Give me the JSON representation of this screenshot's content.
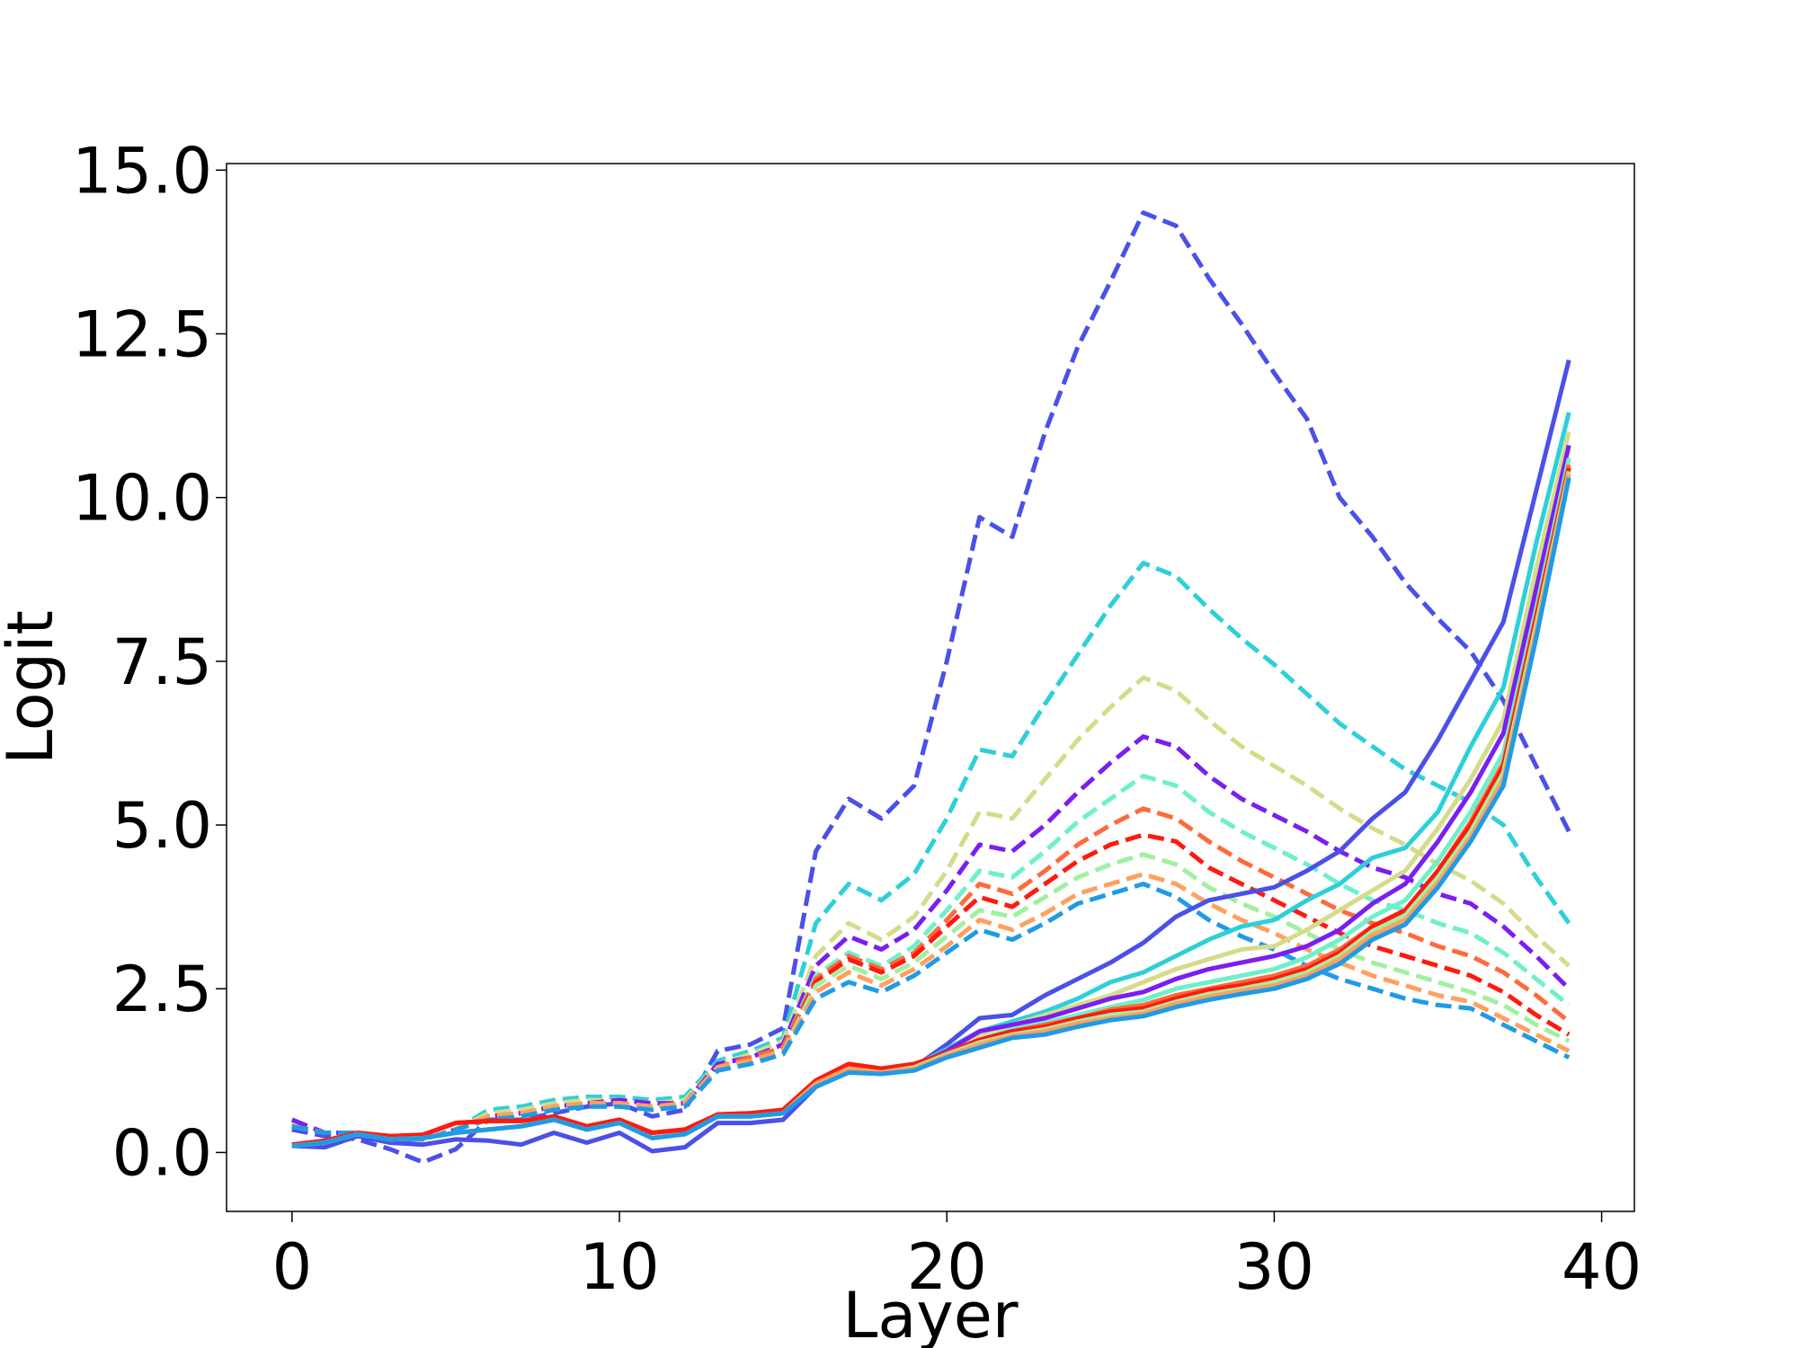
{
  "chart_data": {
    "type": "line",
    "title": "",
    "xlabel": "Layer",
    "ylabel": "Logit",
    "xlim": [
      -2,
      41
    ],
    "ylim": [
      -0.9,
      15.1
    ],
    "x_ticks": [
      0,
      10,
      20,
      30,
      40
    ],
    "x_tick_labels": [
      "0",
      "10",
      "20",
      "30",
      "40"
    ],
    "y_ticks": [
      0.0,
      2.5,
      5.0,
      7.5,
      10.0,
      12.5,
      15.0
    ],
    "y_tick_labels": [
      "0.0",
      "2.5",
      "5.0",
      "7.5",
      "10.0",
      "12.5",
      "15.0"
    ],
    "grid": false,
    "legend": "none",
    "x": [
      0,
      1,
      2,
      3,
      4,
      5,
      6,
      7,
      8,
      9,
      10,
      11,
      12,
      13,
      14,
      15,
      16,
      17,
      18,
      19,
      20,
      21,
      22,
      23,
      24,
      25,
      26,
      27,
      28,
      29,
      30,
      31,
      32,
      33,
      34,
      35,
      36,
      37,
      38,
      39
    ],
    "series": [
      {
        "color": "#4a50e8",
        "style": "dashed",
        "values": [
          0.35,
          0.25,
          0.2,
          0.05,
          -0.15,
          0.05,
          0.5,
          0.5,
          0.6,
          0.7,
          0.75,
          0.55,
          0.65,
          1.55,
          1.65,
          1.9,
          4.6,
          5.4,
          5.1,
          5.6,
          7.5,
          9.7,
          9.4,
          11.0,
          12.3,
          13.3,
          14.35,
          14.15,
          13.35,
          12.65,
          11.9,
          11.2,
          10.0,
          9.4,
          8.7,
          8.15,
          7.65,
          6.9,
          5.9,
          4.9
        ]
      },
      {
        "color": "#2dd0d8",
        "style": "dashed",
        "values": [
          0.45,
          0.3,
          0.3,
          0.2,
          0.2,
          0.35,
          0.65,
          0.7,
          0.8,
          0.85,
          0.85,
          0.8,
          0.85,
          1.4,
          1.55,
          1.75,
          3.5,
          4.1,
          3.85,
          4.25,
          5.1,
          6.15,
          6.05,
          6.85,
          7.6,
          8.35,
          9.0,
          8.8,
          8.3,
          7.85,
          7.45,
          7.0,
          6.55,
          6.2,
          5.85,
          5.6,
          5.35,
          5.0,
          4.2,
          3.5
        ]
      },
      {
        "color": "#d4dc8a",
        "style": "dashed",
        "values": [
          0.45,
          0.3,
          0.3,
          0.2,
          0.2,
          0.35,
          0.6,
          0.65,
          0.75,
          0.8,
          0.8,
          0.75,
          0.8,
          1.35,
          1.5,
          1.7,
          3.0,
          3.5,
          3.25,
          3.6,
          4.3,
          5.2,
          5.1,
          5.7,
          6.3,
          6.8,
          7.25,
          7.05,
          6.6,
          6.2,
          5.9,
          5.6,
          5.25,
          4.95,
          4.7,
          4.4,
          4.15,
          3.8,
          3.3,
          2.85
        ]
      },
      {
        "color": "#7b1ef0",
        "style": "dashed",
        "values": [
          0.5,
          0.3,
          0.3,
          0.2,
          0.2,
          0.35,
          0.55,
          0.6,
          0.7,
          0.75,
          0.8,
          0.75,
          0.75,
          1.35,
          1.45,
          1.65,
          2.85,
          3.3,
          3.1,
          3.4,
          4.0,
          4.7,
          4.6,
          5.0,
          5.5,
          5.95,
          6.35,
          6.2,
          5.75,
          5.4,
          5.15,
          4.9,
          4.6,
          4.35,
          4.2,
          3.95,
          3.8,
          3.45,
          3.0,
          2.5
        ]
      },
      {
        "color": "#6ef0c8",
        "style": "dashed",
        "values": [
          0.4,
          0.3,
          0.3,
          0.2,
          0.2,
          0.35,
          0.55,
          0.6,
          0.7,
          0.75,
          0.75,
          0.7,
          0.75,
          1.3,
          1.45,
          1.6,
          2.7,
          3.05,
          2.85,
          3.15,
          3.7,
          4.3,
          4.2,
          4.6,
          5.05,
          5.4,
          5.75,
          5.6,
          5.2,
          4.9,
          4.65,
          4.4,
          4.1,
          3.85,
          3.7,
          3.5,
          3.35,
          3.05,
          2.65,
          2.25
        ]
      },
      {
        "color": "#ff6a3a",
        "style": "dashed",
        "values": [
          0.4,
          0.3,
          0.3,
          0.2,
          0.2,
          0.35,
          0.55,
          0.6,
          0.7,
          0.75,
          0.75,
          0.7,
          0.75,
          1.3,
          1.45,
          1.6,
          2.65,
          3.0,
          2.8,
          3.05,
          3.55,
          4.1,
          3.95,
          4.3,
          4.7,
          5.0,
          5.25,
          5.1,
          4.75,
          4.45,
          4.2,
          3.95,
          3.7,
          3.5,
          3.35,
          3.15,
          3.0,
          2.75,
          2.4,
          2.0
        ]
      },
      {
        "color": "#ff1a10",
        "style": "dashed",
        "values": [
          0.4,
          0.3,
          0.3,
          0.2,
          0.2,
          0.35,
          0.55,
          0.6,
          0.7,
          0.75,
          0.75,
          0.7,
          0.75,
          1.3,
          1.4,
          1.55,
          2.6,
          2.95,
          2.75,
          3.0,
          3.45,
          3.9,
          3.75,
          4.1,
          4.45,
          4.7,
          4.85,
          4.75,
          4.35,
          4.1,
          3.85,
          3.6,
          3.35,
          3.15,
          3.0,
          2.85,
          2.7,
          2.45,
          2.1,
          1.8
        ]
      },
      {
        "color": "#a0f0a0",
        "style": "dashed",
        "values": [
          0.4,
          0.3,
          0.3,
          0.2,
          0.2,
          0.35,
          0.55,
          0.6,
          0.7,
          0.75,
          0.75,
          0.7,
          0.75,
          1.3,
          1.4,
          1.55,
          2.55,
          2.85,
          2.65,
          2.9,
          3.3,
          3.7,
          3.6,
          3.9,
          4.2,
          4.4,
          4.55,
          4.4,
          4.05,
          3.8,
          3.6,
          3.35,
          3.1,
          2.9,
          2.75,
          2.6,
          2.45,
          2.25,
          1.95,
          1.7
        ]
      },
      {
        "color": "#ffa060",
        "style": "dashed",
        "values": [
          0.4,
          0.3,
          0.3,
          0.2,
          0.2,
          0.35,
          0.55,
          0.6,
          0.7,
          0.75,
          0.75,
          0.7,
          0.75,
          1.3,
          1.4,
          1.55,
          2.45,
          2.75,
          2.55,
          2.8,
          3.15,
          3.55,
          3.4,
          3.65,
          3.95,
          4.1,
          4.25,
          4.1,
          3.8,
          3.55,
          3.35,
          3.1,
          2.9,
          2.7,
          2.55,
          2.4,
          2.3,
          2.05,
          1.8,
          1.55
        ]
      },
      {
        "color": "#1f9be6",
        "style": "dashed",
        "values": [
          0.4,
          0.3,
          0.3,
          0.2,
          0.2,
          0.35,
          0.5,
          0.55,
          0.65,
          0.7,
          0.7,
          0.65,
          0.7,
          1.25,
          1.35,
          1.5,
          2.35,
          2.6,
          2.45,
          2.7,
          3.05,
          3.4,
          3.25,
          3.5,
          3.8,
          3.95,
          4.1,
          3.9,
          3.55,
          3.3,
          3.1,
          2.85,
          2.65,
          2.5,
          2.35,
          2.25,
          2.2,
          1.95,
          1.7,
          1.45
        ]
      },
      {
        "color": "#4a50e8",
        "style": "solid",
        "values": [
          0.1,
          0.08,
          0.25,
          0.15,
          0.12,
          0.2,
          0.18,
          0.12,
          0.3,
          0.15,
          0.3,
          0.02,
          0.08,
          0.45,
          0.45,
          0.5,
          1.0,
          1.25,
          1.2,
          1.3,
          1.65,
          2.05,
          2.1,
          2.4,
          2.65,
          2.9,
          3.2,
          3.6,
          3.85,
          3.95,
          4.05,
          4.3,
          4.6,
          5.1,
          5.5,
          6.3,
          7.2,
          8.1,
          10.1,
          12.1
        ]
      },
      {
        "color": "#2dd0d8",
        "style": "solid",
        "values": [
          0.1,
          0.15,
          0.28,
          0.2,
          0.22,
          0.3,
          0.35,
          0.4,
          0.5,
          0.35,
          0.45,
          0.22,
          0.28,
          0.55,
          0.55,
          0.6,
          1.05,
          1.3,
          1.25,
          1.32,
          1.58,
          1.85,
          2.0,
          2.15,
          2.35,
          2.6,
          2.75,
          3.0,
          3.25,
          3.45,
          3.55,
          3.85,
          4.1,
          4.5,
          4.65,
          5.2,
          6.2,
          7.1,
          9.3,
          11.3
        ]
      },
      {
        "color": "#d4dc8a",
        "style": "solid",
        "values": [
          0.1,
          0.15,
          0.28,
          0.2,
          0.22,
          0.3,
          0.35,
          0.4,
          0.5,
          0.35,
          0.45,
          0.22,
          0.28,
          0.55,
          0.55,
          0.6,
          1.05,
          1.3,
          1.25,
          1.32,
          1.55,
          1.8,
          1.95,
          2.1,
          2.25,
          2.4,
          2.6,
          2.8,
          2.95,
          3.1,
          3.15,
          3.4,
          3.7,
          4.0,
          4.3,
          4.95,
          5.7,
          6.6,
          8.9,
          11.0
        ]
      },
      {
        "color": "#7b1ef0",
        "style": "solid",
        "values": [
          0.1,
          0.15,
          0.28,
          0.2,
          0.22,
          0.3,
          0.35,
          0.4,
          0.5,
          0.35,
          0.45,
          0.22,
          0.28,
          0.55,
          0.55,
          0.6,
          1.05,
          1.3,
          1.25,
          1.32,
          1.55,
          1.85,
          1.95,
          2.05,
          2.2,
          2.35,
          2.45,
          2.65,
          2.8,
          2.9,
          3.0,
          3.15,
          3.4,
          3.8,
          4.1,
          4.75,
          5.5,
          6.4,
          8.6,
          10.8
        ]
      },
      {
        "color": "#6ef0c8",
        "style": "solid",
        "values": [
          0.1,
          0.15,
          0.28,
          0.2,
          0.22,
          0.3,
          0.35,
          0.4,
          0.5,
          0.35,
          0.45,
          0.22,
          0.28,
          0.55,
          0.55,
          0.6,
          1.05,
          1.3,
          1.25,
          1.32,
          1.52,
          1.72,
          1.88,
          1.98,
          2.1,
          2.22,
          2.33,
          2.5,
          2.6,
          2.7,
          2.8,
          2.98,
          3.25,
          3.6,
          3.85,
          4.45,
          5.2,
          6.1,
          8.3,
          10.6
        ]
      },
      {
        "color": "#ff6a3a",
        "style": "solid",
        "values": [
          0.12,
          0.18,
          0.3,
          0.25,
          0.27,
          0.45,
          0.48,
          0.48,
          0.55,
          0.4,
          0.5,
          0.3,
          0.35,
          0.58,
          0.6,
          0.65,
          1.1,
          1.35,
          1.28,
          1.35,
          1.52,
          1.72,
          1.85,
          1.95,
          2.05,
          2.18,
          2.25,
          2.4,
          2.5,
          2.6,
          2.7,
          2.85,
          3.1,
          3.45,
          3.7,
          4.3,
          5.05,
          5.95,
          8.2,
          10.5
        ]
      },
      {
        "color": "#ff1a10",
        "style": "solid",
        "values": [
          0.12,
          0.18,
          0.3,
          0.25,
          0.27,
          0.45,
          0.48,
          0.48,
          0.55,
          0.4,
          0.5,
          0.3,
          0.35,
          0.58,
          0.6,
          0.65,
          1.1,
          1.35,
          1.28,
          1.35,
          1.52,
          1.72,
          1.85,
          1.92,
          2.05,
          2.15,
          2.2,
          2.35,
          2.48,
          2.55,
          2.65,
          2.8,
          3.05,
          3.45,
          3.7,
          4.3,
          5.0,
          5.9,
          8.15,
          10.45
        ]
      },
      {
        "color": "#a0f0a0",
        "style": "solid",
        "values": [
          0.1,
          0.15,
          0.28,
          0.2,
          0.22,
          0.3,
          0.35,
          0.4,
          0.5,
          0.35,
          0.45,
          0.22,
          0.28,
          0.55,
          0.55,
          0.6,
          1.05,
          1.28,
          1.22,
          1.3,
          1.5,
          1.68,
          1.8,
          1.88,
          2.0,
          2.1,
          2.15,
          2.3,
          2.42,
          2.5,
          2.6,
          2.75,
          3.0,
          3.38,
          3.62,
          4.2,
          4.9,
          5.8,
          8.05,
          10.4
        ]
      },
      {
        "color": "#ffa060",
        "style": "solid",
        "values": [
          0.1,
          0.15,
          0.28,
          0.2,
          0.22,
          0.3,
          0.35,
          0.4,
          0.5,
          0.35,
          0.45,
          0.22,
          0.28,
          0.55,
          0.55,
          0.6,
          1.05,
          1.28,
          1.22,
          1.28,
          1.48,
          1.65,
          1.78,
          1.85,
          1.97,
          2.05,
          2.12,
          2.27,
          2.38,
          2.47,
          2.55,
          2.7,
          2.95,
          3.32,
          3.55,
          4.12,
          4.82,
          5.7,
          7.95,
          10.35
        ]
      },
      {
        "color": "#1f9be6",
        "style": "solid",
        "values": [
          0.1,
          0.15,
          0.28,
          0.2,
          0.22,
          0.3,
          0.35,
          0.4,
          0.5,
          0.35,
          0.45,
          0.22,
          0.28,
          0.55,
          0.55,
          0.6,
          1.0,
          1.22,
          1.2,
          1.25,
          1.45,
          1.6,
          1.75,
          1.8,
          1.92,
          2.02,
          2.08,
          2.22,
          2.33,
          2.42,
          2.5,
          2.65,
          2.88,
          3.25,
          3.48,
          4.05,
          4.75,
          5.6,
          7.85,
          10.3
        ]
      }
    ]
  }
}
